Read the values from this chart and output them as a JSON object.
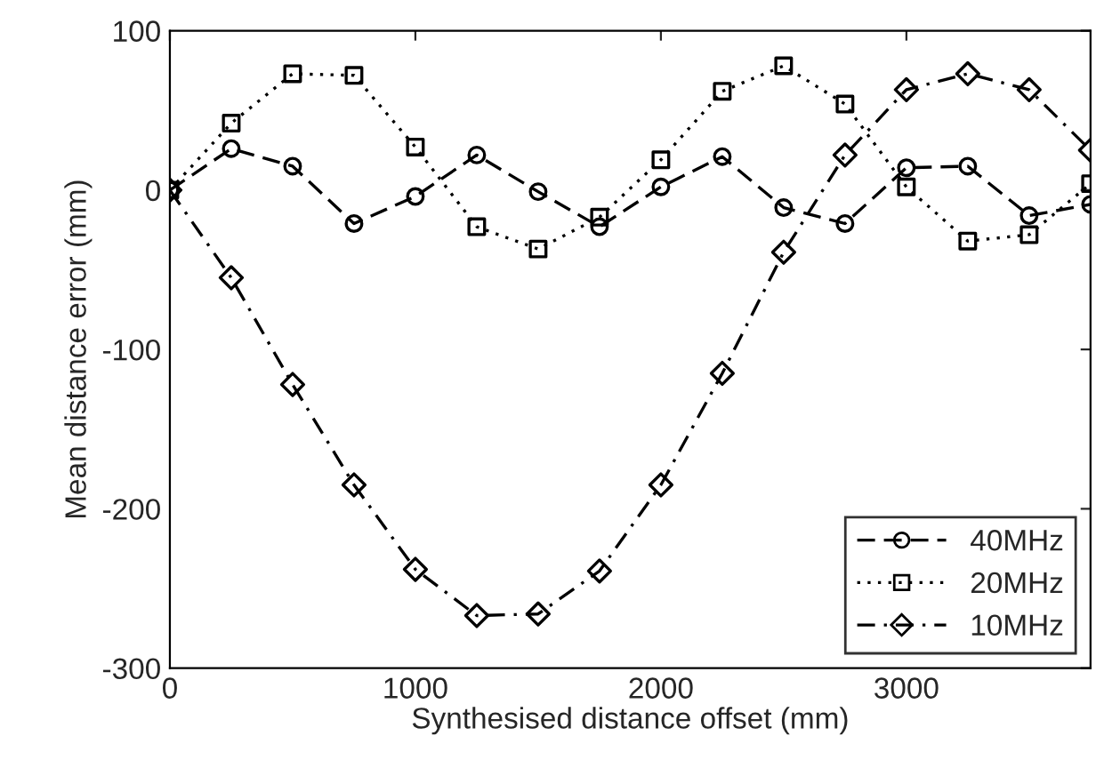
{
  "chart_data": {
    "type": "line",
    "xlabel": "Synthesised distance offset (mm)",
    "ylabel": "Mean distance error (mm)",
    "x": [
      0,
      250,
      500,
      750,
      1000,
      1250,
      1500,
      1750,
      2000,
      2250,
      2500,
      2750,
      3000,
      3250,
      3500,
      3750
    ],
    "series": [
      {
        "name": "40MHz",
        "color": "#000000",
        "marker": "circle",
        "line_style": "dashed",
        "values": [
          0,
          26,
          15,
          -21,
          -4,
          22,
          -1,
          -23,
          2,
          21,
          -11,
          -21,
          14,
          15,
          -16,
          -9
        ]
      },
      {
        "name": "20MHz",
        "color": "#000000",
        "marker": "square",
        "line_style": "dotted",
        "values": [
          0,
          42,
          73,
          72,
          27,
          -23,
          -37,
          -17,
          19,
          62,
          78,
          54,
          2,
          -32,
          -28,
          4
        ]
      },
      {
        "name": "10MHz",
        "color": "#000000",
        "marker": "diamond",
        "line_style": "dashdot",
        "values": [
          0,
          -55,
          -122,
          -185,
          -238,
          -267,
          -266,
          -239,
          -185,
          -115,
          -39,
          22,
          63,
          73,
          63,
          25
        ]
      }
    ],
    "xlim": [
      0,
      3750
    ],
    "ylim": [
      -300,
      100
    ],
    "xticks": [
      0,
      1000,
      2000,
      3000
    ],
    "yticks": [
      -300,
      -200,
      -100,
      0,
      100
    ],
    "grid": false,
    "legend": "bottom right"
  }
}
